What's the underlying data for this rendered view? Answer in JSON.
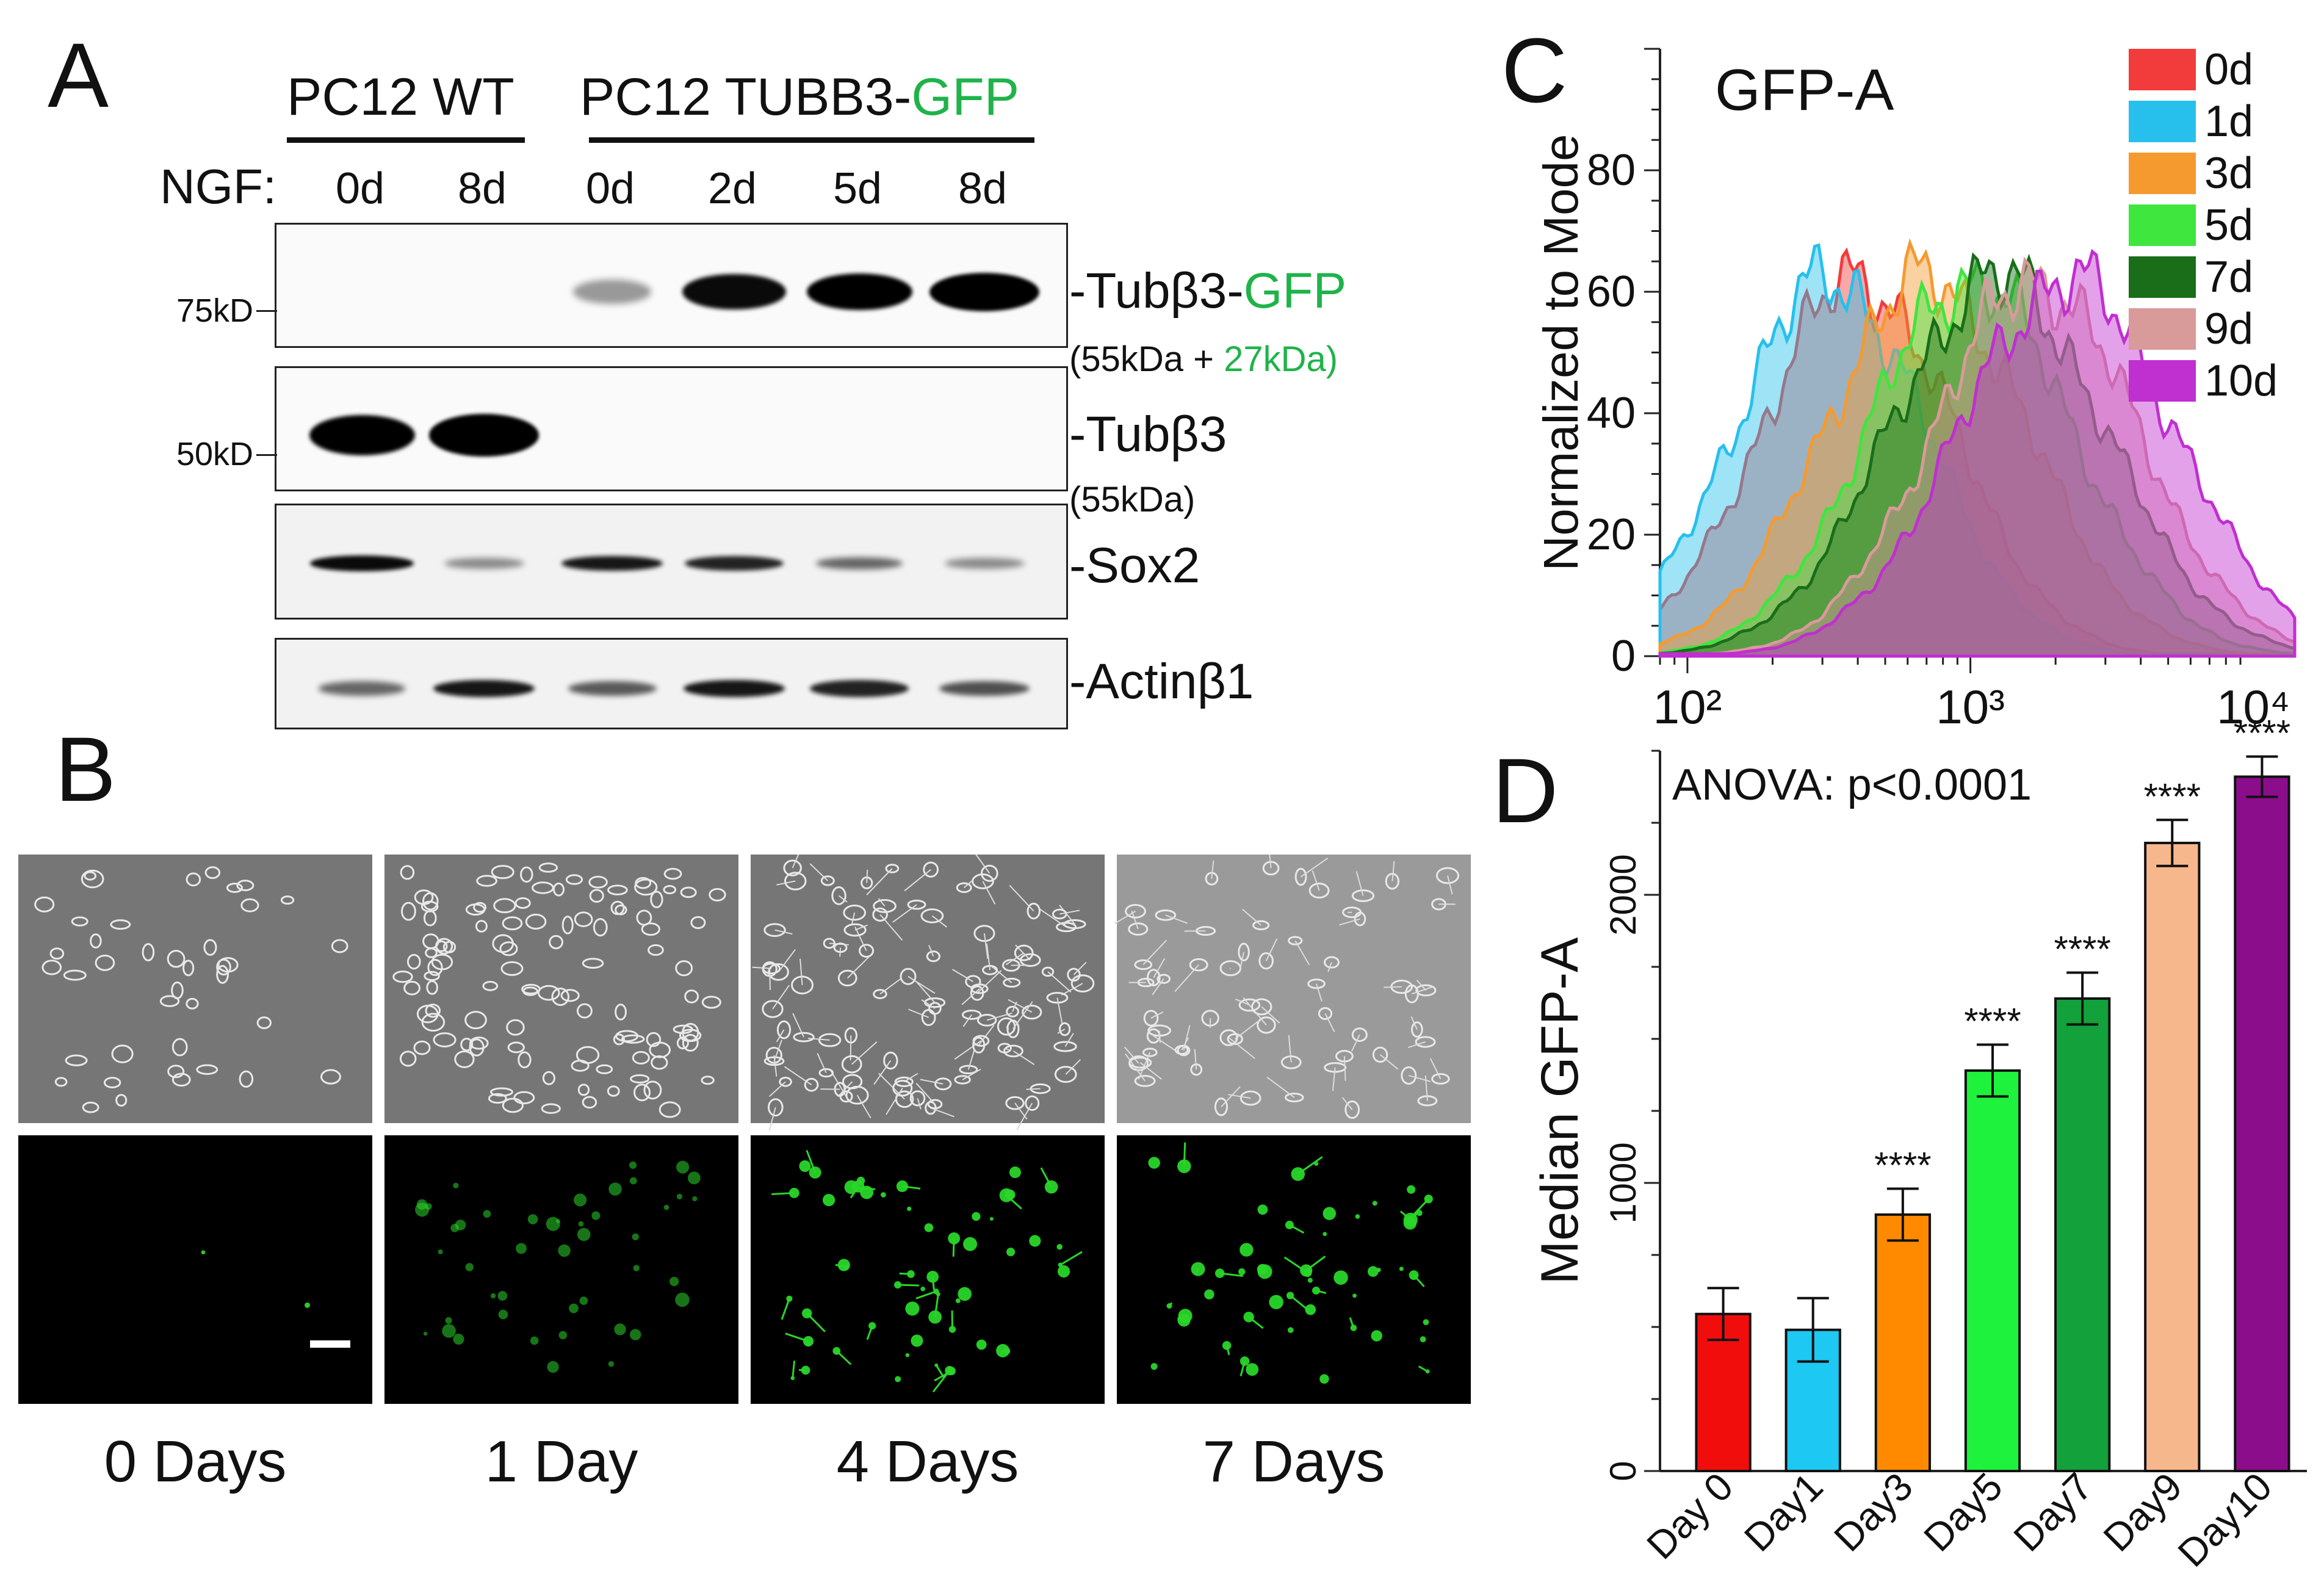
{
  "panels": {
    "a": "A",
    "b": "B",
    "c": "C",
    "d": "D"
  },
  "panel_a": {
    "group_wt": "PC12 WT",
    "group_tg_prefix": "PC12 TUBB3-",
    "group_tg_gfp": "GFP",
    "ngf_label": "NGF:",
    "lanes": [
      "0d",
      "8d",
      "0d",
      "2d",
      "5d",
      "8d"
    ],
    "markers": [
      "75kD",
      "50kD"
    ],
    "rows": {
      "tubb3_gfp_prefix": "-Tubβ3-",
      "tubb3_gfp_gfp": "GFP",
      "tubb3_gfp_sub_a": "(55kDa + ",
      "tubb3_gfp_sub_b": "27kDa)",
      "tubb3": "-Tubβ3",
      "tubb3_sub": "(55kDa)",
      "sox2": "-Sox2",
      "actin": "-Actinβ1"
    },
    "colors": {
      "gfp_text": "#1fb34a"
    },
    "band_intensity": {
      "tubb3_gfp": [
        0,
        0,
        0.25,
        0.85,
        0.9,
        1.0
      ],
      "tubb3": [
        0.9,
        1.0,
        0,
        0,
        0,
        0
      ],
      "sox2": [
        0.85,
        0.3,
        0.8,
        0.75,
        0.45,
        0.3
      ],
      "actin": [
        0.45,
        0.8,
        0.5,
        0.8,
        0.75,
        0.55
      ]
    }
  },
  "panel_b": {
    "timepoints": [
      "0 Days",
      "1 Day",
      "4 Days",
      "7 Days"
    ],
    "colors": {
      "phase_bg": "#767676",
      "fluor_bg": "#000000",
      "gfp_cell": "#29d629"
    }
  },
  "chart_data": [
    {
      "type": "area",
      "title": "GFP-A",
      "ylabel": "Normalized to Mode",
      "xlabel": "",
      "xscale": "log",
      "xlim": [
        80,
        14000
      ],
      "ylim": [
        0,
        100
      ],
      "yticks": [
        0,
        20,
        40,
        60,
        80
      ],
      "xtick_labels": [
        "10²",
        "10³",
        "10⁴"
      ],
      "xticks": [
        100,
        1000,
        10000
      ],
      "legend_position": "top-right",
      "series": [
        {
          "name": "0d",
          "color": "#f23b3b",
          "peak": 400,
          "width": 0.34
        },
        {
          "name": "1d",
          "color": "#27c0ec",
          "peak": 320,
          "width": 0.34
        },
        {
          "name": "3d",
          "color": "#f59a2f",
          "peak": 700,
          "width": 0.36
        },
        {
          "name": "5d",
          "color": "#3ee63e",
          "peak": 1000,
          "width": 0.36
        },
        {
          "name": "7d",
          "color": "#1a6e1a",
          "peak": 1250,
          "width": 0.38
        },
        {
          "name": "9d",
          "color": "#d99a9a",
          "peak": 1700,
          "width": 0.36
        },
        {
          "name": "10d",
          "color": "#c02fd0",
          "peak": 2200,
          "width": 0.38
        }
      ]
    },
    {
      "type": "bar",
      "annotation": "ANOVA: p<0.0001",
      "ylabel": "Median GFP-A",
      "xlabel": "",
      "ylim": [
        0,
        2500
      ],
      "yticks": [
        0,
        1000,
        2000
      ],
      "categories": [
        "Day 0",
        "Day1",
        "Day3",
        "Day5",
        "Day7",
        "Day9",
        "Day10"
      ],
      "values": [
        545,
        490,
        890,
        1390,
        1640,
        2180,
        2410
      ],
      "errors": [
        90,
        110,
        90,
        90,
        90,
        80,
        70
      ],
      "significance": [
        "",
        "",
        "****",
        "****",
        "****",
        "****",
        "****"
      ],
      "colors": [
        "#f20d0d",
        "#1dc8f2",
        "#ff8a00",
        "#1ff23c",
        "#12a13a",
        "#f7b78c",
        "#8c0d8c"
      ]
    }
  ]
}
